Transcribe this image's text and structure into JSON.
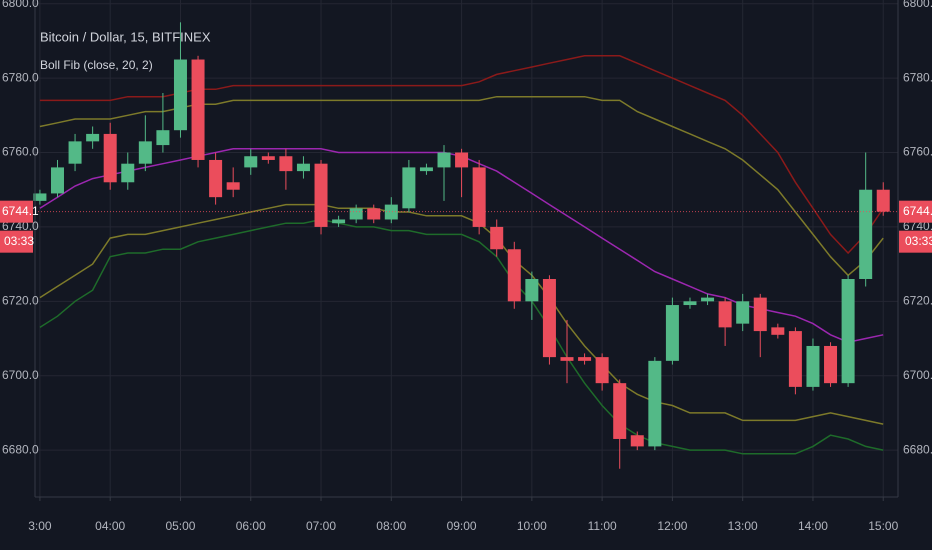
{
  "chart_data": {
    "type": "candlestick",
    "title": "Bitcoin / Dollar, 15, BITFINEX",
    "subtitle": "Boll Fib (close, 20, 2)",
    "last_price": 6744.1,
    "last_price_label": "6744.1",
    "countdown": "03:33",
    "up_color": "#53b987",
    "down_color": "#eb4d5c",
    "x": [
      3,
      3.25,
      3.5,
      3.75,
      4,
      4.25,
      4.5,
      4.75,
      5,
      5.25,
      5.5,
      5.75,
      6,
      6.25,
      6.5,
      6.75,
      7,
      7.25,
      7.5,
      7.75,
      8,
      8.25,
      8.5,
      8.75,
      9,
      9.25,
      9.5,
      9.75,
      10,
      10.25,
      10.5,
      10.75,
      11,
      11.25,
      11.5,
      11.75,
      12,
      12.25,
      12.5,
      12.75,
      13,
      13.25,
      13.5,
      13.75,
      14,
      14.25,
      14.5,
      14.75,
      15
    ],
    "open": [
      6747,
      6749,
      6757,
      6763,
      6765,
      6752,
      6757,
      6762,
      6766,
      6785,
      6758,
      6752,
      6756,
      6759,
      6759,
      6755,
      6757,
      6741,
      6742,
      6745,
      6742,
      6745,
      6755,
      6756,
      6760,
      6756,
      6740,
      6734,
      6720,
      6726,
      6705,
      6705,
      6705,
      6698,
      6684,
      6681,
      6704,
      6719,
      6720,
      6720,
      6714,
      6721,
      6713,
      6712,
      6697,
      6708,
      6698,
      6726,
      6750
    ],
    "high": [
      6750,
      6758,
      6765,
      6767,
      6768,
      6760,
      6770,
      6776,
      6795,
      6786,
      6760,
      6756,
      6761,
      6760,
      6761,
      6759,
      6758,
      6743,
      6746,
      6746,
      6748,
      6758,
      6757,
      6762,
      6761,
      6758,
      6742,
      6736,
      6728,
      6727,
      6715,
      6706,
      6706,
      6699,
      6685,
      6705,
      6721,
      6721,
      6722,
      6721,
      6722,
      6722,
      6714,
      6713,
      6710,
      6709,
      6727,
      6760,
      6752
    ],
    "low": [
      6746,
      6748,
      6755,
      6761,
      6750,
      6750,
      6755,
      6760,
      6764,
      6756,
      6746,
      6748,
      6754,
      6757,
      6750,
      6753,
      6738,
      6740,
      6741,
      6741,
      6741,
      6744,
      6754,
      6747,
      6748,
      6738,
      6732,
      6718,
      6715,
      6703,
      6698,
      6703,
      6696,
      6675,
      6680,
      6680,
      6703,
      6718,
      6719,
      6708,
      6712,
      6705,
      6710,
      6695,
      6696,
      6697,
      6697,
      6724,
      6743
    ],
    "close": [
      6749,
      6756,
      6763,
      6765,
      6752,
      6757,
      6763,
      6766,
      6785,
      6758,
      6748,
      6750,
      6759,
      6758,
      6755,
      6757,
      6740,
      6742,
      6745,
      6742,
      6746,
      6756,
      6756,
      6760,
      6756,
      6740,
      6734,
      6720,
      6726,
      6705,
      6704,
      6704,
      6698,
      6683,
      6681,
      6704,
      6719,
      6720,
      6721,
      6713,
      6720,
      6712,
      6711,
      6697,
      6708,
      6698,
      6726,
      6750,
      6744.1
    ],
    "bands": [
      {
        "color": "#8b1a1a",
        "values": [
          6774,
          6774,
          6774,
          6774,
          6774,
          6775,
          6775,
          6775,
          6776,
          6777,
          6777,
          6778,
          6778,
          6778,
          6778,
          6778,
          6778,
          6778,
          6778,
          6778,
          6778,
          6778,
          6778,
          6778,
          6778,
          6779,
          6781,
          6782,
          6783,
          6784,
          6785,
          6786,
          6786,
          6786,
          6784,
          6782,
          6780,
          6778,
          6776,
          6774,
          6770,
          6765,
          6760,
          6752,
          6745,
          6738,
          6733,
          6738,
          6745
        ]
      },
      {
        "color": "#7d7a2a",
        "values": [
          6767,
          6768,
          6769,
          6769,
          6769,
          6770,
          6771,
          6771,
          6772,
          6773,
          6773,
          6774,
          6774,
          6774,
          6774,
          6774,
          6774,
          6774,
          6774,
          6774,
          6774,
          6774,
          6774,
          6774,
          6774,
          6774,
          6775,
          6775,
          6775,
          6775,
          6775,
          6775,
          6774,
          6774,
          6771,
          6769,
          6767,
          6765,
          6763,
          6761,
          6758,
          6754,
          6750,
          6744,
          6738,
          6732,
          6727,
          6731,
          6737
        ]
      },
      {
        "color": "#9c27b0",
        "values": [
          6745,
          6748,
          6751,
          6753,
          6754,
          6755,
          6756,
          6757,
          6758,
          6759,
          6760,
          6761,
          6761,
          6761,
          6761,
          6761,
          6761,
          6760,
          6760,
          6760,
          6760,
          6760,
          6760,
          6760,
          6759,
          6757,
          6755,
          6752,
          6749,
          6746,
          6743,
          6740,
          6737,
          6734,
          6731,
          6728,
          6726,
          6724,
          6722,
          6721,
          6719,
          6718,
          6717,
          6716,
          6714,
          6711,
          6709,
          6710,
          6711
        ]
      },
      {
        "color": "#7d7a2a",
        "values": [
          6721,
          6724,
          6727,
          6730,
          6737,
          6738,
          6738,
          6739,
          6740,
          6741,
          6742,
          6743,
          6744,
          6745,
          6746,
          6746,
          6746,
          6745,
          6745,
          6745,
          6744,
          6744,
          6743,
          6743,
          6743,
          6741,
          6737,
          6731,
          6727,
          6721,
          6714,
          6708,
          6703,
          6698,
          6695,
          6693,
          6692,
          6690,
          6690,
          6690,
          6688,
          6688,
          6688,
          6688,
          6689,
          6690,
          6689,
          6688,
          6687
        ]
      },
      {
        "color": "#1e6b2a",
        "values": [
          6713,
          6716,
          6720,
          6723,
          6732,
          6733,
          6733,
          6734,
          6734,
          6736,
          6737,
          6738,
          6739,
          6740,
          6741,
          6741,
          6742,
          6741,
          6740,
          6740,
          6739,
          6739,
          6738,
          6738,
          6738,
          6736,
          6732,
          6725,
          6720,
          6713,
          6705,
          6698,
          6692,
          6687,
          6684,
          6682,
          6681,
          6680,
          6680,
          6680,
          6679,
          6679,
          6679,
          6679,
          6681,
          6684,
          6683,
          6681,
          6680
        ]
      }
    ],
    "xlim": [
      2.93,
      15.21
    ],
    "xticks": [
      {
        "value": 3,
        "label": "3:00"
      },
      {
        "value": 4,
        "label": "04:00"
      },
      {
        "value": 5,
        "label": "05:00"
      },
      {
        "value": 6,
        "label": "06:00"
      },
      {
        "value": 7,
        "label": "07:00"
      },
      {
        "value": 8,
        "label": "08:00"
      },
      {
        "value": 9,
        "label": "09:00"
      },
      {
        "value": 10,
        "label": "10:00"
      },
      {
        "value": 11,
        "label": "11:00"
      },
      {
        "value": 12,
        "label": "12:00"
      },
      {
        "value": 13,
        "label": "13:00"
      },
      {
        "value": 14,
        "label": "14:00"
      },
      {
        "value": 15,
        "label": "15:00"
      }
    ],
    "ylim": [
      6667.4,
      6801
    ],
    "yticks": [
      {
        "value": 6680,
        "label": "6680.0"
      },
      {
        "value": 6700,
        "label": "6700.0"
      },
      {
        "value": 6720,
        "label": "6720.0"
      },
      {
        "value": 6740,
        "label": "6740.0"
      },
      {
        "value": 6760,
        "label": "6760.0"
      },
      {
        "value": 6780,
        "label": "6780.0"
      },
      {
        "value": 6800,
        "label": "6800.0"
      }
    ],
    "grid": true
  }
}
